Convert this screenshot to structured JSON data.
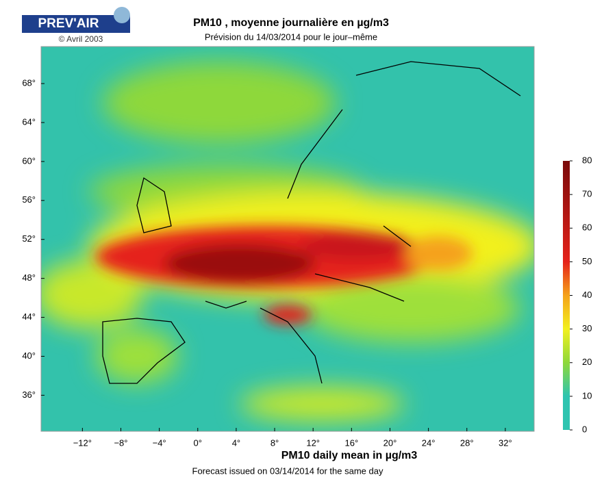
{
  "header": {
    "logo": "PREV'AIR",
    "copyright": "© Avril 2003",
    "title": "PM10 , moyenne journalière en µg/m3",
    "subtitle": "Prévision du 14/03/2014 pour le jour–même"
  },
  "map": {
    "xlim": [
      -16.3,
      35
    ],
    "ylim": [
      32.3,
      71.8
    ],
    "xticks": [
      {
        "value": -12,
        "label": "−12°"
      },
      {
        "value": -8,
        "label": "−8°"
      },
      {
        "value": -4,
        "label": "−4°"
      },
      {
        "value": 0,
        "label": "0°"
      },
      {
        "value": 4,
        "label": "4°"
      },
      {
        "value": 8,
        "label": "8°"
      },
      {
        "value": 12,
        "label": "12°"
      },
      {
        "value": 16,
        "label": "16°"
      },
      {
        "value": 20,
        "label": "20°"
      },
      {
        "value": 24,
        "label": "24°"
      },
      {
        "value": 28,
        "label": "28°"
      },
      {
        "value": 32,
        "label": "32°"
      }
    ],
    "yticks": [
      {
        "value": 68,
        "label": "68°"
      },
      {
        "value": 64,
        "label": "64°"
      },
      {
        "value": 60,
        "label": "60°"
      },
      {
        "value": 56,
        "label": "56°"
      },
      {
        "value": 52,
        "label": "52°"
      },
      {
        "value": 48,
        "label": "48°"
      },
      {
        "value": 44,
        "label": "44°"
      },
      {
        "value": 40,
        "label": "40°"
      },
      {
        "value": 36,
        "label": "36°"
      }
    ]
  },
  "colorbar": {
    "lim": [
      0,
      80
    ],
    "ticks": [
      0,
      10,
      20,
      30,
      40,
      50,
      60,
      70,
      80
    ]
  },
  "footer": {
    "title": "PM10 daily mean in µg/m3",
    "note": "Forecast issued on 03/14/2014 for the same day"
  }
}
